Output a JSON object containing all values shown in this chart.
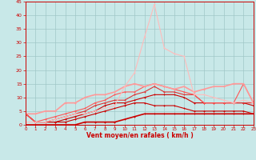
{
  "x": [
    0,
    1,
    2,
    3,
    4,
    5,
    6,
    7,
    8,
    9,
    10,
    11,
    12,
    13,
    14,
    15,
    16,
    17,
    18,
    19,
    20,
    21,
    22,
    23
  ],
  "lines": [
    {
      "y": [
        4,
        1,
        1,
        1,
        1,
        2,
        3,
        4,
        5,
        6,
        7,
        8,
        8,
        7,
        7,
        7,
        6,
        5,
        5,
        5,
        5,
        5,
        5,
        4
      ],
      "color": "#cc0000",
      "lw": 0.8,
      "marker": "+"
    },
    {
      "y": [
        4,
        1,
        1,
        1,
        2,
        3,
        4,
        5,
        7,
        8,
        8,
        9,
        10,
        11,
        11,
        11,
        10,
        8,
        8,
        8,
        8,
        8,
        8,
        7
      ],
      "color": "#cc0000",
      "lw": 0.8,
      "marker": "+"
    },
    {
      "y": [
        4,
        1,
        1,
        2,
        3,
        4,
        5,
        7,
        8,
        9,
        9,
        11,
        12,
        14,
        12,
        12,
        11,
        11,
        8,
        8,
        8,
        8,
        8,
        8
      ],
      "color": "#dd3333",
      "lw": 0.8,
      "marker": "+"
    },
    {
      "y": [
        4,
        1,
        2,
        3,
        4,
        5,
        6,
        8,
        9,
        11,
        12,
        12,
        14,
        15,
        14,
        13,
        12,
        11,
        8,
        8,
        8,
        8,
        15,
        8
      ],
      "color": "#ff5555",
      "lw": 0.8,
      "marker": "+"
    },
    {
      "y": [
        4,
        4,
        5,
        5,
        8,
        8,
        10,
        11,
        11,
        12,
        14,
        15,
        14,
        15,
        14,
        13,
        14,
        12,
        13,
        14,
        14,
        15,
        15,
        8
      ],
      "color": "#ff9999",
      "lw": 1.2,
      "marker": "+"
    },
    {
      "y": [
        1,
        1,
        1,
        2,
        3,
        4,
        4,
        5,
        6,
        7,
        14,
        19,
        32,
        44,
        28,
        26,
        25,
        11,
        11,
        10,
        9,
        8,
        9,
        8
      ],
      "color": "#ffbbbb",
      "lw": 0.8,
      "marker": "+"
    },
    {
      "y": [
        0,
        0,
        0,
        0,
        0,
        0,
        1,
        1,
        1,
        1,
        2,
        3,
        4,
        4,
        4,
        4,
        4,
        4,
        4,
        4,
        4,
        4,
        4,
        4
      ],
      "color": "#cc0000",
      "lw": 1.2,
      "marker": "+"
    }
  ],
  "xlabel": "Vent moyen/en rafales ( km/h )",
  "xlim": [
    0,
    23
  ],
  "ylim": [
    0,
    45
  ],
  "yticks": [
    0,
    5,
    10,
    15,
    20,
    25,
    30,
    35,
    40,
    45
  ],
  "xticks": [
    0,
    1,
    2,
    3,
    4,
    5,
    6,
    7,
    8,
    9,
    10,
    11,
    12,
    13,
    14,
    15,
    16,
    17,
    18,
    19,
    20,
    21,
    22,
    23
  ],
  "bg_color": "#c8e8e8",
  "grid_color": "#a0c8c8",
  "xlabel_color": "#cc0000",
  "tick_color": "#cc0000",
  "axis_color": "#cc0000",
  "fig_width": 3.2,
  "fig_height": 2.0,
  "dpi": 100
}
